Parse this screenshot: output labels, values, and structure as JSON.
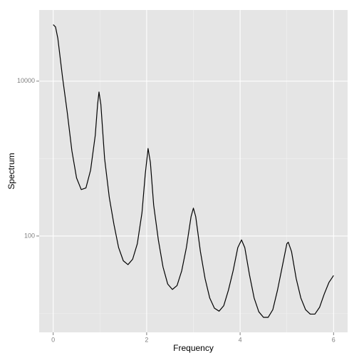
{
  "chart_data": {
    "type": "line",
    "x_label": "Frequency",
    "y_label": "Spectrum",
    "x": [
      0,
      0.05,
      0.1,
      0.2,
      0.3,
      0.4,
      0.5,
      0.6,
      0.7,
      0.8,
      0.9,
      0.95,
      0.98,
      1.02,
      1.1,
      1.2,
      1.3,
      1.4,
      1.5,
      1.6,
      1.7,
      1.8,
      1.9,
      1.97,
      2.03,
      2.08,
      2.15,
      2.25,
      2.35,
      2.45,
      2.55,
      2.65,
      2.75,
      2.85,
      2.95,
      3.0,
      3.05,
      3.15,
      3.25,
      3.35,
      3.45,
      3.55,
      3.65,
      3.75,
      3.85,
      3.95,
      4.03,
      4.1,
      4.2,
      4.3,
      4.4,
      4.5,
      4.6,
      4.7,
      4.8,
      4.9,
      5.0,
      5.03,
      5.1,
      5.2,
      5.3,
      5.4,
      5.5,
      5.6,
      5.7,
      5.8,
      5.9,
      6.0
    ],
    "series": [
      {
        "color": "#000000",
        "values": [
          53700,
          50100,
          35500,
          11200,
          3980,
          1260,
          562,
          398,
          417,
          708,
          1995,
          5010,
          7240,
          5010,
          1000,
          316,
          141,
          70.8,
          47.9,
          42.7,
          50.1,
          79.4,
          200,
          631,
          1350,
          891,
          251,
          89.1,
          39.8,
          24,
          20.4,
          22.9,
          35.5,
          70.8,
          178,
          229,
          178,
          63.1,
          28.2,
          15.8,
          11.7,
          10.7,
          12.6,
          20,
          35.5,
          70.8,
          89.1,
          70.8,
          31.6,
          15.8,
          10.5,
          8.9,
          8.9,
          11.2,
          20,
          39.8,
          79.4,
          83.2,
          63.1,
          28.2,
          15.8,
          11.2,
          9.8,
          9.8,
          12,
          17.8,
          25.1,
          30.9
        ]
      }
    ],
    "xlim": [
      -0.3,
      6.3
    ],
    "xticks": [
      0,
      2,
      4,
      6
    ],
    "x_minor_ticks": [
      1,
      3,
      5
    ],
    "ylim": [
      5.7,
      83000
    ],
    "yticks": [
      100,
      10000
    ],
    "y_minor_ticks": [
      10,
      1000
    ],
    "log_y": true,
    "grid": true
  }
}
